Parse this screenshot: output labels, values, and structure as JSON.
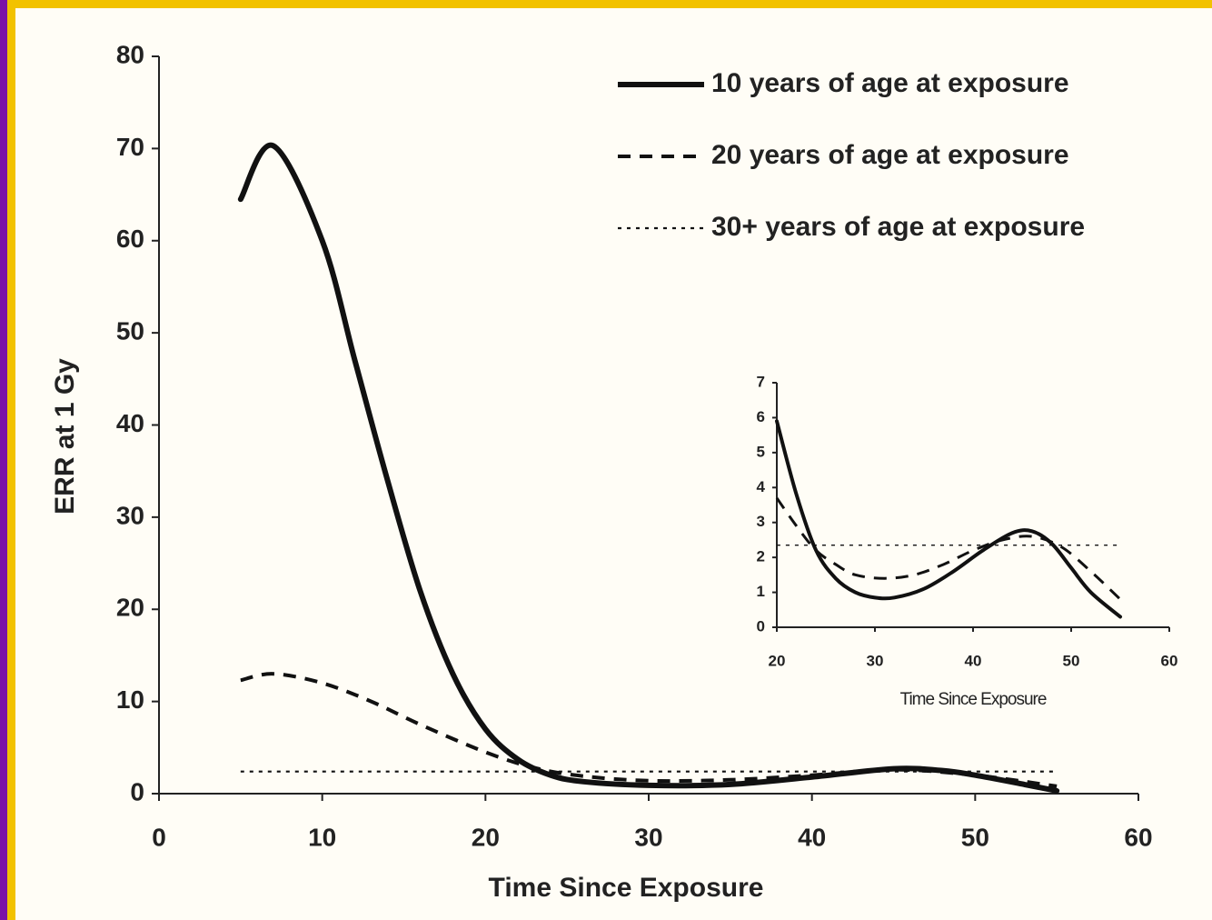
{
  "chart_data": [
    {
      "type": "line",
      "x_label": "Time Since Exposure",
      "y_label": "ERR at 1 Gy",
      "xlim": [
        0,
        60
      ],
      "xticks": [
        0,
        10,
        20,
        30,
        40,
        50,
        60
      ],
      "ylim": [
        0,
        80
      ],
      "yticks": [
        0,
        10,
        20,
        30,
        40,
        50,
        60,
        70,
        80
      ],
      "grid": false,
      "legend": "top-right",
      "series": [
        {
          "name": "10 years of age at exposure",
          "color": "#111111",
          "style": "solid",
          "x": [
            5,
            7,
            10,
            12,
            14,
            16,
            18,
            20,
            22,
            24,
            26,
            30,
            35,
            40,
            45,
            48,
            50,
            53,
            55
          ],
          "values": [
            64.5,
            70.3,
            60,
            47,
            34,
            22,
            13,
            7,
            3.7,
            2,
            1.3,
            0.9,
            1.0,
            1.8,
            2.7,
            2.5,
            2,
            1,
            0.3
          ]
        },
        {
          "name": "20 years of age at exposure",
          "color": "#111111",
          "style": "dashed",
          "x": [
            5,
            7,
            10,
            13,
            16,
            20,
            23,
            26,
            30,
            35,
            40,
            45,
            50,
            55
          ],
          "values": [
            12.3,
            13,
            12,
            10,
            7.5,
            4.5,
            2.8,
            1.9,
            1.4,
            1.5,
            2.0,
            2.6,
            2.0,
            0.8
          ]
        },
        {
          "name": "30+ years of age at exposure",
          "color": "#111111",
          "style": "dotted",
          "x": [
            5,
            55
          ],
          "values": [
            2.4,
            2.4
          ]
        }
      ]
    },
    {
      "type": "line",
      "x_label": "Time Since Exposure",
      "xlim": [
        20,
        60
      ],
      "xticks": [
        20,
        30,
        40,
        50,
        60
      ],
      "ylim": [
        0,
        7
      ],
      "yticks": [
        0,
        1,
        2,
        3,
        4,
        5,
        6,
        7
      ],
      "grid": false,
      "series": [
        {
          "color": "#111111",
          "style": "solid",
          "x": [
            20,
            22,
            24,
            26,
            28,
            30,
            32,
            35,
            38,
            41,
            44,
            46,
            48,
            50,
            52,
            55
          ],
          "values": [
            5.9,
            3.8,
            2.2,
            1.4,
            1.0,
            0.85,
            0.85,
            1.1,
            1.6,
            2.2,
            2.7,
            2.75,
            2.4,
            1.7,
            1.0,
            0.3
          ]
        },
        {
          "color": "#111111",
          "style": "dashed",
          "x": [
            20,
            22,
            24,
            26,
            28,
            31,
            34,
            37,
            40,
            43,
            46,
            49,
            52,
            55
          ],
          "values": [
            3.7,
            2.9,
            2.2,
            1.8,
            1.5,
            1.4,
            1.5,
            1.8,
            2.2,
            2.5,
            2.6,
            2.3,
            1.6,
            0.8
          ]
        },
        {
          "color": "#111111",
          "style": "dotted",
          "x": [
            20,
            55
          ],
          "values": [
            2.35,
            2.35
          ]
        }
      ]
    }
  ]
}
